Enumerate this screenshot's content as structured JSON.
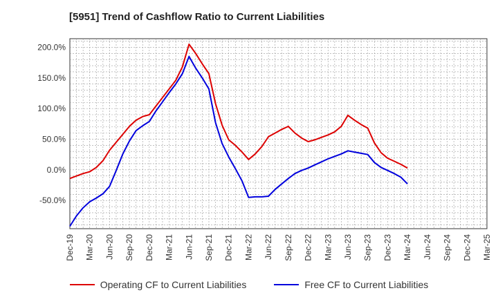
{
  "title": "[5951]  Trend of Cashflow Ratio to Current Liabilities",
  "chart_data": {
    "type": "line",
    "title": "[5951]  Trend of Cashflow Ratio to Current Liabilities",
    "xlabel": "",
    "ylabel": "",
    "x_tick_labels": [
      "Dec-19",
      "Mar-20",
      "Jun-20",
      "Sep-20",
      "Dec-20",
      "Mar-21",
      "Jun-21",
      "Sep-21",
      "Dec-21",
      "Mar-22",
      "Jun-22",
      "Sep-22",
      "Dec-22",
      "Mar-23",
      "Jun-23",
      "Sep-23",
      "Dec-23",
      "Mar-24",
      "Jun-24",
      "Sep-24",
      "Dec-24",
      "Mar-25"
    ],
    "y_tick_labels": [
      "-50.0%",
      "0.0%",
      "50.0%",
      "100.0%",
      "150.0%",
      "200.0%"
    ],
    "y_ticks": [
      -50,
      0,
      50,
      100,
      150,
      200
    ],
    "ylim": [
      -96,
      214
    ],
    "x_unit": "month",
    "x_range_months": [
      0,
      63
    ],
    "grid": true,
    "legend_position": "bottom",
    "series": [
      {
        "name": "Operating CF to Current Liabilities",
        "color": "#dd0000",
        "x": [
          0,
          1,
          2,
          3,
          4,
          5,
          6,
          7,
          8,
          9,
          10,
          11,
          12,
          13,
          14,
          15,
          16,
          17,
          18,
          19,
          20,
          21,
          22,
          23,
          24,
          25,
          26,
          27,
          28,
          29,
          30,
          31,
          32,
          33,
          34,
          35,
          36,
          37,
          38,
          39,
          40,
          41,
          42,
          43,
          44,
          45,
          46,
          47,
          48,
          49,
          50,
          51
        ],
        "values": [
          -14,
          -10,
          -6,
          -3,
          4,
          15,
          32,
          45,
          58,
          71,
          81,
          87,
          90,
          104,
          118,
          132,
          146,
          168,
          205,
          190,
          173,
          157,
          108,
          73,
          49,
          40,
          29,
          17,
          26,
          38,
          54,
          60,
          66,
          71,
          60,
          52,
          46,
          49,
          53,
          57,
          62,
          71,
          89,
          81,
          74,
          68,
          44,
          28,
          19,
          14,
          9,
          3
        ]
      },
      {
        "name": "Free CF to Current Liabilities",
        "color": "#0000dd",
        "x": [
          0,
          1,
          2,
          3,
          4,
          5,
          6,
          7,
          8,
          9,
          10,
          11,
          12,
          13,
          14,
          15,
          16,
          17,
          18,
          19,
          20,
          21,
          22,
          23,
          24,
          25,
          26,
          27,
          28,
          29,
          30,
          31,
          32,
          33,
          34,
          35,
          36,
          37,
          38,
          39,
          40,
          41,
          42,
          43,
          44,
          45,
          46,
          47,
          48,
          49,
          50,
          51
        ],
        "values": [
          -92,
          -75,
          -62,
          -52,
          -46,
          -39,
          -27,
          -1,
          26,
          47,
          64,
          72,
          79,
          96,
          111,
          126,
          140,
          157,
          185,
          166,
          150,
          132,
          77,
          43,
          21,
          2,
          -18,
          -45,
          -44,
          -44,
          -43,
          -32,
          -23,
          -14,
          -6,
          -1,
          3,
          8,
          13,
          18,
          22,
          26,
          31,
          29,
          27,
          25,
          12,
          4,
          -1,
          -6,
          -12,
          -23
        ]
      }
    ]
  }
}
